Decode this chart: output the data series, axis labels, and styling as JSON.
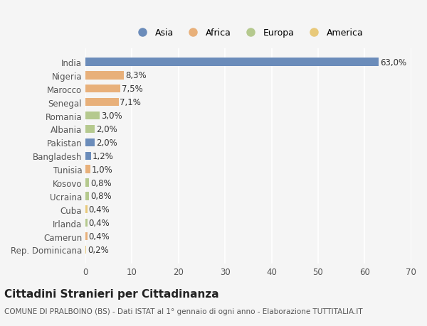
{
  "countries": [
    "India",
    "Nigeria",
    "Marocco",
    "Senegal",
    "Romania",
    "Albania",
    "Pakistan",
    "Bangladesh",
    "Tunisia",
    "Kosovo",
    "Ucraina",
    "Cuba",
    "Irlanda",
    "Camerun",
    "Rep. Dominicana"
  ],
  "values": [
    63.0,
    8.3,
    7.5,
    7.1,
    3.0,
    2.0,
    2.0,
    1.2,
    1.0,
    0.8,
    0.8,
    0.4,
    0.4,
    0.4,
    0.2
  ],
  "labels": [
    "63,0%",
    "8,3%",
    "7,5%",
    "7,1%",
    "3,0%",
    "2,0%",
    "2,0%",
    "1,2%",
    "1,0%",
    "0,8%",
    "0,8%",
    "0,4%",
    "0,4%",
    "0,4%",
    "0,2%"
  ],
  "continents": [
    "Asia",
    "Africa",
    "Africa",
    "Africa",
    "Europa",
    "Europa",
    "Asia",
    "Asia",
    "Africa",
    "Europa",
    "Europa",
    "America",
    "Europa",
    "Africa",
    "America"
  ],
  "colors": {
    "Asia": "#6b8cba",
    "Africa": "#e8b07a",
    "Europa": "#b5c98e",
    "America": "#e8c97a"
  },
  "legend_order": [
    "Asia",
    "Africa",
    "Europa",
    "America"
  ],
  "title": "Cittadini Stranieri per Cittadinanza",
  "subtitle": "COMUNE DI PRALBOINO (BS) - Dati ISTAT al 1° gennaio di ogni anno - Elaborazione TUTTITALIA.IT",
  "xlim": [
    0,
    70
  ],
  "xticks": [
    0,
    10,
    20,
    30,
    40,
    50,
    60,
    70
  ],
  "background_color": "#f5f5f5",
  "bar_height": 0.6,
  "grid_color": "#ffffff",
  "label_fontsize": 8.5,
  "tick_fontsize": 8.5,
  "title_fontsize": 11,
  "subtitle_fontsize": 7.5
}
